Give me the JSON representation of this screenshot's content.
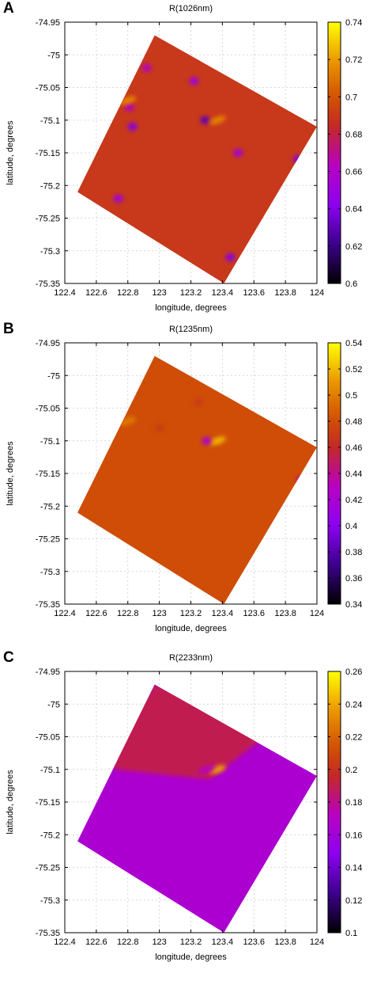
{
  "chart_data": [
    {
      "panel": "A",
      "type": "heatmap",
      "title": "R(1026nm)",
      "xlabel": "longitude, degrees",
      "ylabel": "latitude, degrees",
      "xlim": [
        122.4,
        124
      ],
      "ylim": [
        -75.35,
        -74.95
      ],
      "xticks": [
        "122.4",
        "122.6",
        "122.8",
        "123",
        "123.2",
        "123.4",
        "123.6",
        "123.8",
        "124"
      ],
      "yticks": [
        "-74.95",
        "-75",
        "-75.05",
        "-75.1",
        "-75.15",
        "-75.2",
        "-75.25",
        "-75.3",
        "-75.35"
      ],
      "colorbar_range": [
        0.6,
        0.74
      ],
      "colorbar_ticks": [
        "0.74",
        "0.72",
        "0.7",
        "0.68",
        "0.66",
        "0.64",
        "0.62",
        "0.6"
      ],
      "swath_corners": [
        [
          122.97,
          -74.97
        ],
        [
          124.0,
          -75.11
        ],
        [
          123.41,
          -75.35
        ],
        [
          122.48,
          -75.21
        ]
      ],
      "base_value": 0.69,
      "grid": true,
      "features": [
        {
          "lon": 122.83,
          "lat": -75.11,
          "value": 0.64
        },
        {
          "lon": 122.81,
          "lat": -75.08,
          "value": 0.66
        },
        {
          "lon": 123.22,
          "lat": -75.04,
          "value": 0.65
        },
        {
          "lon": 123.29,
          "lat": -75.1,
          "value": 0.63
        },
        {
          "lon": 123.5,
          "lat": -75.15,
          "value": 0.65
        },
        {
          "lon": 123.88,
          "lat": -75.16,
          "value": 0.64
        },
        {
          "lon": 122.74,
          "lat": -75.22,
          "value": 0.65
        },
        {
          "lon": 122.92,
          "lat": -75.02,
          "value": 0.66
        },
        {
          "lon": 123.45,
          "lat": -75.31,
          "value": 0.64
        },
        {
          "lon": 122.8,
          "lat": -75.07,
          "value": 0.715
        },
        {
          "lon": 123.37,
          "lat": -75.1,
          "value": 0.715
        }
      ]
    },
    {
      "panel": "B",
      "type": "heatmap",
      "title": "R(1235nm)",
      "xlabel": "longitude, degrees",
      "ylabel": "latitude, degrees",
      "xlim": [
        122.4,
        124
      ],
      "ylim": [
        -75.35,
        -74.95
      ],
      "xticks": [
        "122.4",
        "122.6",
        "122.8",
        "123",
        "123.2",
        "123.4",
        "123.6",
        "123.8",
        "124"
      ],
      "yticks": [
        "-74.95",
        "-75",
        "-75.05",
        "-75.1",
        "-75.15",
        "-75.2",
        "-75.25",
        "-75.3",
        "-75.35"
      ],
      "colorbar_range": [
        0.34,
        0.54
      ],
      "colorbar_ticks": [
        "0.54",
        "0.52",
        "0.5",
        "0.48",
        "0.46",
        "0.44",
        "0.42",
        "0.4",
        "0.38",
        "0.36",
        "0.34"
      ],
      "swath_corners": [
        [
          122.97,
          -74.97
        ],
        [
          124.0,
          -75.11
        ],
        [
          123.41,
          -75.35
        ],
        [
          122.48,
          -75.21
        ]
      ],
      "base_value": 0.48,
      "grid": true,
      "features": [
        {
          "lon": 123.37,
          "lat": -75.1,
          "value": 0.52
        },
        {
          "lon": 123.3,
          "lat": -75.1,
          "value": 0.42
        },
        {
          "lon": 122.8,
          "lat": -75.07,
          "value": 0.5
        },
        {
          "lon": 123.9,
          "lat": -75.16,
          "value": 0.44
        },
        {
          "lon": 123.0,
          "lat": -75.08,
          "value": 0.47
        },
        {
          "lon": 123.25,
          "lat": -75.04,
          "value": 0.47
        }
      ]
    },
    {
      "panel": "C",
      "type": "heatmap",
      "title": "R(2233nm)",
      "xlabel": "longitude, degrees",
      "ylabel": "latitude, degrees",
      "xlim": [
        122.4,
        124
      ],
      "ylim": [
        -75.35,
        -74.95
      ],
      "xticks": [
        "122.4",
        "122.6",
        "122.8",
        "123",
        "123.2",
        "123.4",
        "123.6",
        "123.8",
        "124"
      ],
      "yticks": [
        "-74.95",
        "-75",
        "-75.05",
        "-75.1",
        "-75.15",
        "-75.2",
        "-75.25",
        "-75.3",
        "-75.35"
      ],
      "colorbar_range": [
        0.1,
        0.26
      ],
      "colorbar_ticks": [
        "0.26",
        "0.24",
        "0.22",
        "0.2",
        "0.18",
        "0.16",
        "0.14",
        "0.12",
        "0.1"
      ],
      "swath_corners": [
        [
          122.97,
          -74.97
        ],
        [
          124.0,
          -75.11
        ],
        [
          123.41,
          -75.35
        ],
        [
          122.48,
          -75.21
        ]
      ],
      "base_value": 0.165,
      "upper_value": 0.19,
      "grid": true,
      "features": [
        {
          "lon": 123.37,
          "lat": -75.1,
          "value": 0.24
        },
        {
          "lon": 123.3,
          "lat": -75.1,
          "value": 0.17
        }
      ]
    }
  ]
}
